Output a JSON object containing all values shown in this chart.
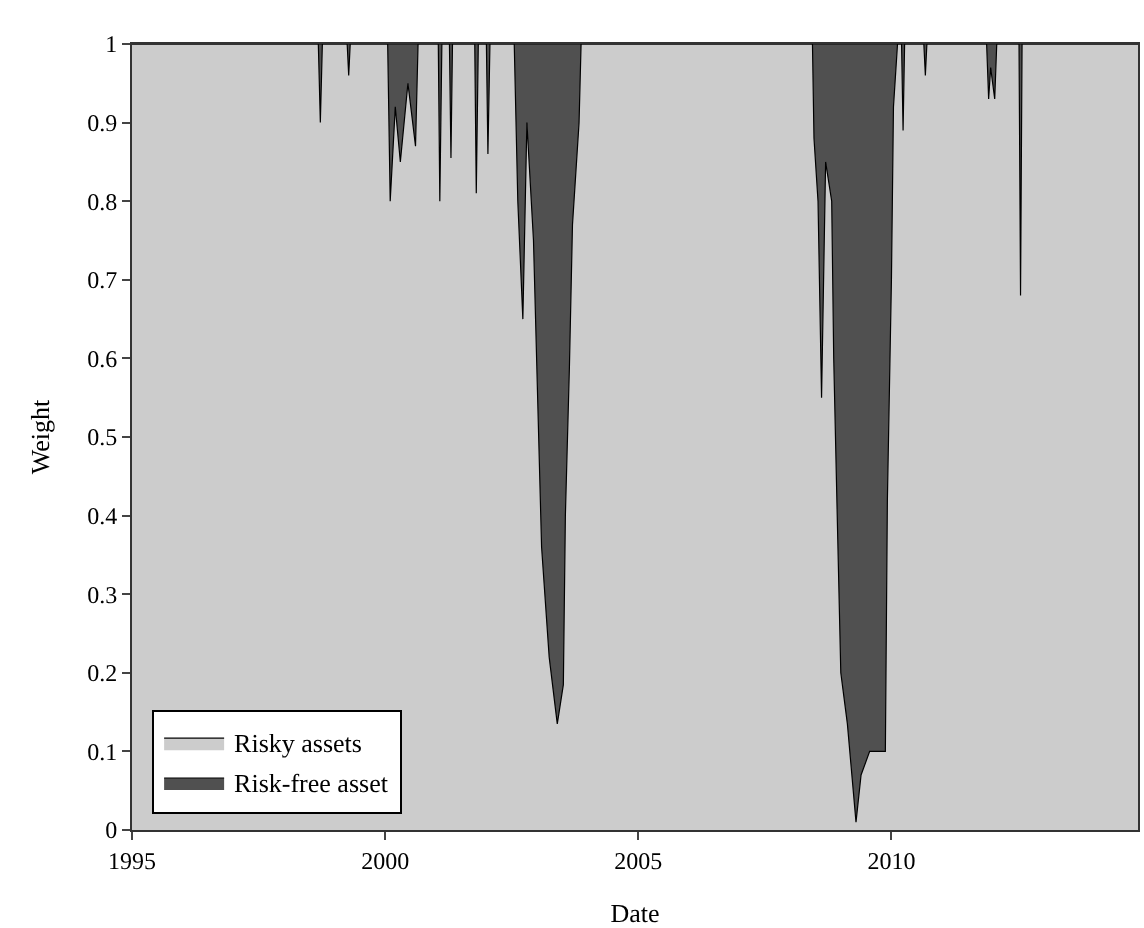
{
  "chart_data": {
    "type": "area",
    "stacked": true,
    "xlabel": "Date",
    "ylabel": "Weight",
    "x": [
      1995,
      1998.68,
      1998.72,
      1998.76,
      1999.25,
      1999.28,
      1999.31,
      2000.05,
      2000.1,
      2000.2,
      2000.3,
      2000.45,
      2000.6,
      2000.65,
      2001.05,
      2001.08,
      2001.12,
      2001.27,
      2001.3,
      2001.33,
      2001.77,
      2001.8,
      2001.84,
      2002.0,
      2002.03,
      2002.07,
      2002.55,
      2002.62,
      2002.72,
      2002.8,
      2002.93,
      2003.09,
      2003.24,
      2003.4,
      2003.52,
      2003.56,
      2003.64,
      2003.7,
      2003.83,
      2003.87,
      2008.44,
      2008.47,
      2008.55,
      2008.62,
      2008.7,
      2008.82,
      2008.86,
      2008.94,
      2009.0,
      2009.13,
      2009.3,
      2009.4,
      2009.57,
      2009.88,
      2009.92,
      2010.0,
      2010.04,
      2010.12,
      2010.2,
      2010.23,
      2010.26,
      2010.64,
      2010.67,
      2010.7,
      2011.88,
      2011.92,
      2011.96,
      2012.04,
      2012.08,
      2012.52,
      2012.55,
      2012.58,
      2014.87
    ],
    "series": [
      {
        "name": "Risky assets",
        "color": "#cccccc",
        "values": [
          1,
          1,
          0.9,
          1,
          1,
          0.96,
          1,
          1,
          0.8,
          0.92,
          0.85,
          0.95,
          0.87,
          1,
          1,
          0.8,
          1,
          1,
          0.855,
          1,
          1,
          0.81,
          1,
          1,
          0.86,
          1,
          1,
          0.8,
          0.65,
          0.9,
          0.75,
          0.36,
          0.22,
          0.135,
          0.185,
          0.4,
          0.59,
          0.77,
          0.9,
          1,
          1,
          0.88,
          0.8,
          0.55,
          0.85,
          0.8,
          0.6,
          0.37,
          0.2,
          0.135,
          0.01,
          0.07,
          0.1,
          0.1,
          0.42,
          0.7,
          0.92,
          1,
          1,
          0.89,
          1,
          1,
          0.96,
          1,
          1,
          0.93,
          0.97,
          0.93,
          1,
          1,
          0.68,
          1,
          1
        ]
      },
      {
        "name": "Risk-free asset",
        "color": "#505050",
        "values": [
          0,
          0,
          0.1,
          0,
          0,
          0.04,
          0,
          0,
          0.2,
          0.08,
          0.15,
          0.05,
          0.13,
          0,
          0,
          0.2,
          0,
          0,
          0.145,
          0,
          0,
          0.19,
          0,
          0,
          0.14,
          0,
          0,
          0.2,
          0.35,
          0.1,
          0.25,
          0.64,
          0.78,
          0.865,
          0.815,
          0.6,
          0.41,
          0.23,
          0.1,
          0,
          0,
          0.12,
          0.2,
          0.45,
          0.15,
          0.2,
          0.4,
          0.63,
          0.8,
          0.865,
          0.99,
          0.93,
          0.9,
          0.9,
          0.58,
          0.3,
          0.08,
          0,
          0,
          0.11,
          0,
          0,
          0.04,
          0,
          0,
          0.07,
          0.03,
          0.07,
          0,
          0,
          0.32,
          0,
          0
        ]
      }
    ],
    "xlim": [
      1995,
      2014.87
    ],
    "xticks": [
      1995,
      2000,
      2005,
      2010
    ],
    "ylim": [
      0,
      1
    ],
    "yticks": [
      0,
      0.1,
      0.2,
      0.3,
      0.4,
      0.5,
      0.6,
      0.7,
      0.8,
      0.9,
      1
    ],
    "legend": "bottom left"
  }
}
